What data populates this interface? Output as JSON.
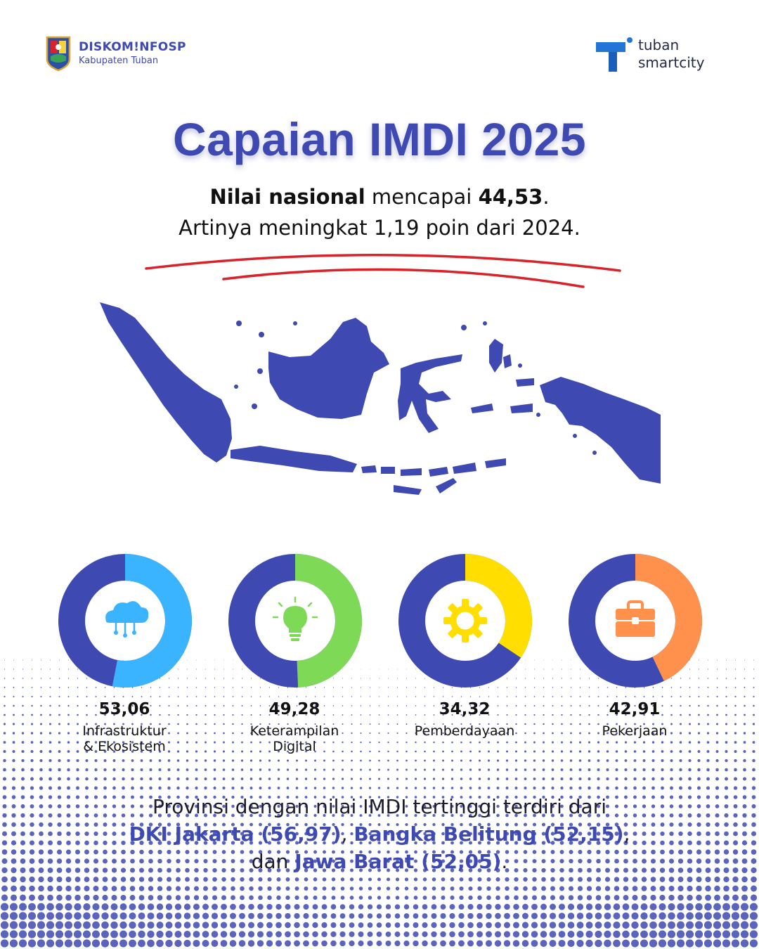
{
  "header": {
    "left_logo_name": "DISKOM!NFOSP",
    "left_logo_sub": "Kabupaten Tuban",
    "right_logo_line1": "tuban",
    "right_logo_line2": "smartcity"
  },
  "title": "Capaian IMDI 2025",
  "subtitle": {
    "line1_bold1": "Nilai nasional",
    "line1_text": " mencapai ",
    "line1_bold2": "44,53",
    "line1_end": ".",
    "line2": "Artinya meningkat 1,19 poin dari 2024."
  },
  "colors": {
    "primary": "#3e49b2",
    "accent_red": "#d8232a",
    "ring_infra": "#3bb4ff",
    "ring_digital": "#7ed957",
    "ring_pemberdayaan": "#ffde00",
    "ring_pekerjaan": "#ff914d"
  },
  "chart_data": {
    "type": "pie",
    "max": 100,
    "series": [
      {
        "name": "Infrastruktur\n& Ekosistem",
        "value": 53.06,
        "label": "53,06",
        "color": "#3bb4ff",
        "icon": "cloud-network-icon"
      },
      {
        "name": "Keterampilan\nDigital",
        "value": 49.28,
        "label": "49,28",
        "color": "#7ed957",
        "icon": "lightbulb-icon"
      },
      {
        "name": "Pemberdayaan",
        "value": 34.32,
        "label": "34,32",
        "color": "#ffde00",
        "icon": "gear-icon"
      },
      {
        "name": "Pekerjaan",
        "value": 42.91,
        "label": "42,91",
        "color": "#ff914d",
        "icon": "briefcase-icon"
      }
    ]
  },
  "footer": {
    "line1": "Provinsi dengan nilai IMDI tertinggi terdiri dari",
    "p1": "DKI Jakarta (56,97)",
    "sep1": ", ",
    "p2": "Bangka Belitung (52,15)",
    "sep2": ",",
    "pre3": "dan ",
    "p3": "Jawa Barat (52,05)",
    "end": "."
  }
}
